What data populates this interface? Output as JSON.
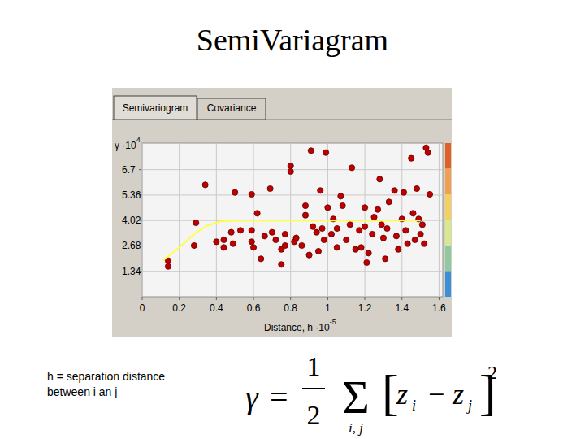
{
  "slide": {
    "title": "SemiVariagram",
    "tabs": [
      "Semivariogram",
      "Covariance"
    ],
    "caption": [
      "h = separation distance",
      "between i an j"
    ],
    "formula": {
      "lhs": "γ",
      "equals": "=",
      "numerator": "1",
      "denominator": "2",
      "sum": "Σ",
      "sum_index": "i, j",
      "open": "[",
      "z1": "z",
      "sub1": "i",
      "minus": "−",
      "z2": "z",
      "sub2": "j",
      "close": "]",
      "power": "2"
    }
  },
  "chart_data": {
    "type": "scatter",
    "xlabel": "Distance, h ·10",
    "xlabel_exponent": "-5",
    "ylabel": "γ ·10",
    "ylabel_exponent": "4",
    "xlim": [
      0,
      1.62
    ],
    "ylim": [
      0,
      8.1
    ],
    "xticks": [
      0,
      0.2,
      0.4,
      0.6,
      0.8,
      1,
      1.2,
      1.4,
      1.6
    ],
    "yticks": [
      1.34,
      2.68,
      4.02,
      5.36,
      6.7
    ],
    "grid": true,
    "series": [
      {
        "type": "scatter",
        "color": "#c00000",
        "marker": "circle",
        "x": [
          0.14,
          0.14,
          0.28,
          0.29,
          0.34,
          0.4,
          0.44,
          0.44,
          0.49,
          0.5,
          0.48,
          0.53,
          0.59,
          0.59,
          0.59,
          0.6,
          0.62,
          0.64,
          0.66,
          0.69,
          0.7,
          0.72,
          0.75,
          0.75,
          0.77,
          0.77,
          0.8,
          0.8,
          0.82,
          0.83,
          0.86,
          0.88,
          0.88,
          0.9,
          0.91,
          0.92,
          0.94,
          0.95,
          0.96,
          0.97,
          0.98,
          0.99,
          1.0,
          1.02,
          1.03,
          1.05,
          1.05,
          1.07,
          1.08,
          1.1,
          1.12,
          1.13,
          1.15,
          1.17,
          1.18,
          1.2,
          1.2,
          1.21,
          1.22,
          1.24,
          1.25,
          1.27,
          1.28,
          1.29,
          1.3,
          1.31,
          1.32,
          1.33,
          1.36,
          1.37,
          1.38,
          1.4,
          1.41,
          1.42,
          1.43,
          1.45,
          1.46,
          1.47,
          1.48,
          1.49,
          1.5,
          1.51,
          1.52,
          1.53,
          1.54,
          1.55
        ],
        "values": [
          1.6,
          1.9,
          2.7,
          3.9,
          5.9,
          2.9,
          2.6,
          3.0,
          2.8,
          5.5,
          3.4,
          3.5,
          5.4,
          2.9,
          3.5,
          2.6,
          4.4,
          2.0,
          3.2,
          5.7,
          3.4,
          3.0,
          2.5,
          1.7,
          2.7,
          3.3,
          6.6,
          6.9,
          2.9,
          3.1,
          2.7,
          4.8,
          4.3,
          2.2,
          7.7,
          3.7,
          3.4,
          2.4,
          5.6,
          3.6,
          3.0,
          7.6,
          4.7,
          3.3,
          4.1,
          2.6,
          3.6,
          5.3,
          4.8,
          3.0,
          3.8,
          6.8,
          2.5,
          3.5,
          2.6,
          4.7,
          3.7,
          1.8,
          2.3,
          3.3,
          4.2,
          4.6,
          6.2,
          3.8,
          3.1,
          2.0,
          3.6,
          5.0,
          5.6,
          3.2,
          2.5,
          4.1,
          5.5,
          3.5,
          2.8,
          7.3,
          4.4,
          3.0,
          5.7,
          4.1,
          3.3,
          3.8,
          2.8,
          7.85,
          7.6,
          5.4
        ]
      },
      {
        "type": "line",
        "color": "#ffff40",
        "line_style": "solid",
        "x": [
          0.11,
          0.2,
          0.28,
          0.35,
          0.42,
          0.5,
          1.5
        ],
        "values": [
          1.9,
          2.6,
          3.3,
          3.75,
          3.97,
          4.02,
          4.02
        ]
      }
    ]
  }
}
